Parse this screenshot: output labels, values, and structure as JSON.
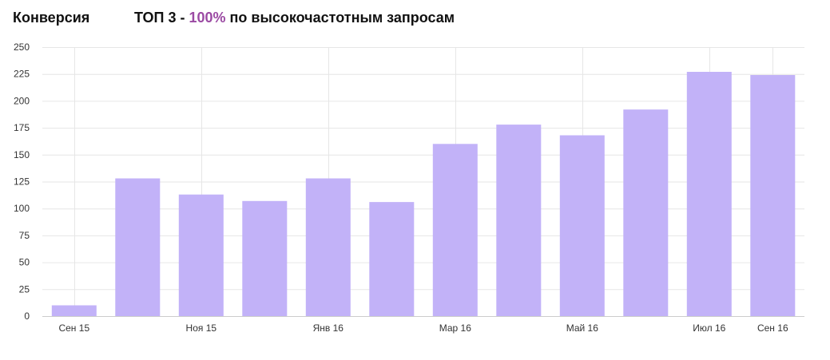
{
  "header": {
    "section_label": "Конверсия",
    "headline_prefix": "ТОП 3 - ",
    "headline_value": "100%",
    "headline_suffix": " по высокочастотным запросам"
  },
  "colors": {
    "bar": "#c2b2f8",
    "accent": "#9b4aa3",
    "grid": "#e6e6e6",
    "axis": "#cccccc",
    "text": "#333333"
  },
  "chart_data": {
    "type": "bar",
    "title": "",
    "xlabel": "",
    "ylabel": "",
    "ylim": [
      0,
      250
    ],
    "y_ticks": [
      0,
      25,
      50,
      75,
      100,
      125,
      150,
      175,
      200,
      225,
      250
    ],
    "categories": [
      "Сен 15",
      "",
      "Ноя 15",
      "",
      "Янв 16",
      "",
      "Мар 16",
      "",
      "Май 16",
      "",
      "Июл 16",
      "Сен 16"
    ],
    "values": [
      10,
      128,
      113,
      107,
      128,
      106,
      160,
      178,
      168,
      192,
      227,
      224
    ],
    "grid": true,
    "legend": "none"
  }
}
